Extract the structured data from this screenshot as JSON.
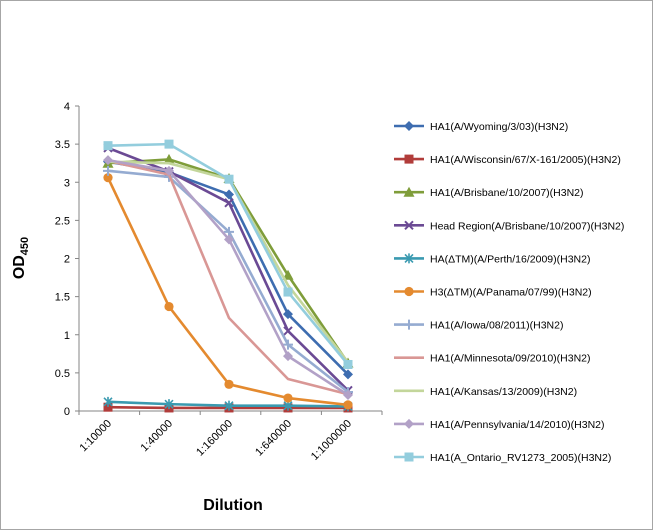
{
  "chart_data": {
    "type": "line",
    "title": "",
    "xlabel": "Dilution",
    "ylabel": "OD",
    "ylabel_subscript": "450",
    "ylim": [
      0,
      4
    ],
    "yticks": [
      "0",
      "0.5",
      "1",
      "1.5",
      "2",
      "2.5",
      "3",
      "3.5",
      "4"
    ],
    "categories": [
      "1:10000",
      "1:40000",
      "1:160000",
      "1:640000",
      "1:1000000"
    ],
    "legend_position": "right",
    "series": [
      {
        "name": "HA1(A/Wyoming/3/03)(H3N2)",
        "color": "#3e6db0",
        "marker": "diamond",
        "values": [
          3.27,
          3.13,
          2.84,
          1.27,
          0.48
        ]
      },
      {
        "name": "HA1(A/Wisconsin/67/X-161/2005)(H3N2)",
        "color": "#b13c3a",
        "marker": "square",
        "values": [
          0.05,
          0.04,
          0.04,
          0.04,
          0.04
        ]
      },
      {
        "name": "HA1(A/Brisbane/10/2007)(H3N2)",
        "color": "#7f9d3a",
        "marker": "triangle",
        "values": [
          3.25,
          3.3,
          3.05,
          1.78,
          0.63
        ]
      },
      {
        "name": "Head Region(A/Brisbane/10/2007)(H3N2)",
        "color": "#6b4a94",
        "marker": "x",
        "values": [
          3.45,
          3.14,
          2.73,
          1.05,
          0.27
        ]
      },
      {
        "name": "HA(ΔTM)(A/Perth/16/2009)(H3N2)",
        "color": "#3a9ab0",
        "marker": "star",
        "values": [
          0.12,
          0.09,
          0.07,
          0.07,
          0.06
        ]
      },
      {
        "name": "H3(ΔTM)(A/Panama/07/99)(H3N2)",
        "color": "#e48a2f",
        "marker": "circle",
        "values": [
          3.06,
          1.37,
          0.35,
          0.17,
          0.08
        ]
      },
      {
        "name": "HA1(A/Iowa/08/2011)(H3N2)",
        "color": "#95abd1",
        "marker": "plus",
        "values": [
          3.15,
          3.07,
          2.35,
          0.87,
          0.25
        ]
      },
      {
        "name": "HA1(A/Minnesota/09/2010)(H3N2)",
        "color": "#d99795",
        "marker": "none",
        "values": [
          3.28,
          3.1,
          1.22,
          0.42,
          0.22
        ]
      },
      {
        "name": "HA1(A/Kansas/13/2009)(H3N2)",
        "color": "#c3d69b",
        "marker": "none",
        "values": [
          3.27,
          3.25,
          3.04,
          1.65,
          0.64
        ]
      },
      {
        "name": "HA1(A/Pennsylvania/14/2010)(H3N2)",
        "color": "#b2a1c7",
        "marker": "diamond",
        "values": [
          3.29,
          3.15,
          2.25,
          0.72,
          0.21
        ]
      },
      {
        "name": "HA1(A_Ontario_RV1273_2005)(H3N2)",
        "color": "#93cddd",
        "marker": "square",
        "values": [
          3.48,
          3.5,
          3.04,
          1.56,
          0.61
        ]
      }
    ]
  }
}
